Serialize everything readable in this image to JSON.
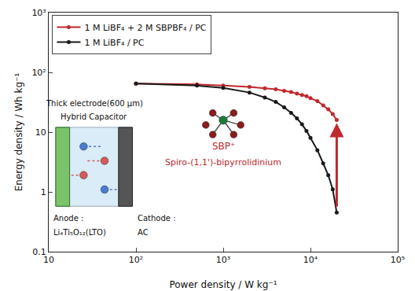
{
  "chart_data": {
    "type": "line",
    "x_label": "Power density / W kg⁻¹",
    "y_label": "Energy density / Wh kg⁻¹",
    "log": true,
    "grid": false,
    "legend": "upper left",
    "marker": "circle",
    "xlim": [
      10,
      100000
    ],
    "ylim": [
      0.1,
      1000
    ],
    "xticks": [
      10,
      {
        "value": 100,
        "label": "10²"
      },
      {
        "value": 1000,
        "label": "10³"
      },
      {
        "value": 10000,
        "label": "10⁴"
      },
      {
        "value": 100000,
        "label": "10⁵"
      }
    ],
    "yticks": [
      0.1,
      1,
      10,
      {
        "value": 100,
        "label": "10²"
      },
      {
        "value": 1000,
        "label": "10³"
      }
    ],
    "series": [
      {
        "name": "1 M LiBF₄ + 2 M SBPBF₄ / PC",
        "color": "#c0282d",
        "x": [
          100,
          500,
          1000,
          2000,
          3000,
          4000,
          5000,
          6000,
          7000,
          8000,
          9000,
          10000,
          12000,
          14000,
          16000,
          18000,
          20000
        ],
        "values": [
          65,
          63,
          60,
          57,
          54,
          52,
          49,
          47,
          44,
          42,
          40,
          37,
          33,
          28,
          24,
          20,
          16
        ]
      },
      {
        "name": "1 M LiBF₄ / PC",
        "color": "#1a1a1a",
        "x": [
          100,
          500,
          1000,
          2000,
          3000,
          4000,
          5000,
          6000,
          7000,
          8000,
          9000,
          10000,
          12000,
          14000,
          16000,
          18000,
          20000
        ],
        "values": [
          65,
          60,
          55,
          46,
          38,
          32,
          26,
          21,
          17,
          13.5,
          10.5,
          8,
          5,
          3,
          1.9,
          1.1,
          0.45
        ]
      }
    ],
    "annotations": {
      "inset_title": [
        "Thick electrode(600 µm)",
        "Hybrid Capacitor"
      ],
      "anode": [
        "Anode :",
        "Li₄Ti₅O₁₂(LTO)"
      ],
      "cathode": [
        "Cathode :",
        "AC"
      ],
      "ion": "SBP⁺",
      "ion_name": "Spiro-(1,1')-bipyrrolidinium"
    }
  }
}
